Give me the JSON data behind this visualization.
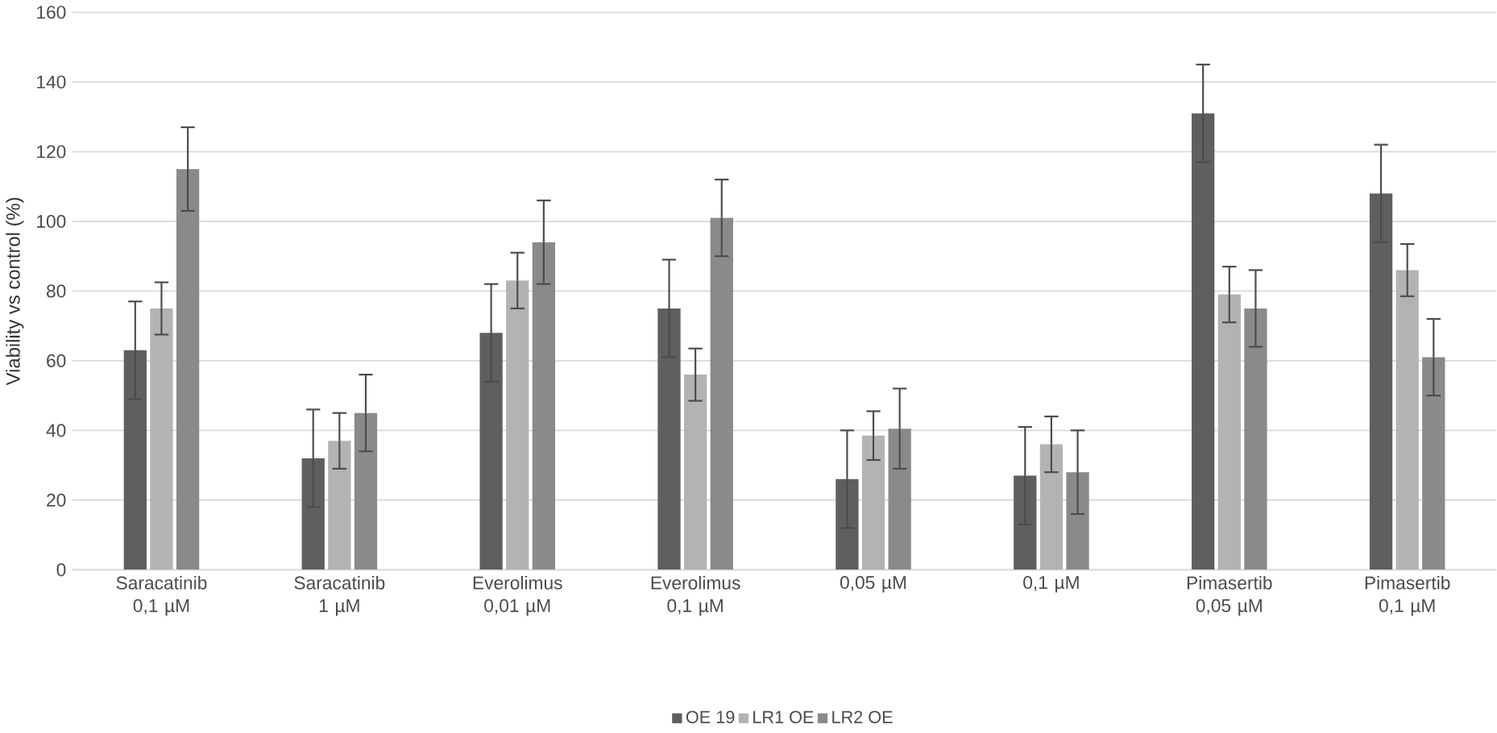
{
  "chart_data": {
    "type": "bar",
    "ylabel": "Viability vs control (%)",
    "categories": [
      "Saracatinib 0,1 µM",
      "Saracatinib 1 µM",
      "Everolimus 0,01 µM",
      "Everolimus 0,1  µM",
      "0,05 µM",
      "0,1 µM",
      "Pimasertib 0,05 µM",
      "Pimasertib 0,1 µM"
    ],
    "series": [
      {
        "name": "OE 19",
        "color": "#5f5f5f",
        "values": [
          63,
          32,
          68,
          75,
          26,
          27,
          131,
          108
        ],
        "errors": [
          14,
          14,
          14,
          14,
          14,
          14,
          14,
          14
        ]
      },
      {
        "name": "LR1 OE",
        "color": "#b3b3b3",
        "values": [
          75,
          37,
          83,
          56,
          38.5,
          36,
          79,
          86
        ],
        "errors": [
          7.5,
          8,
          8,
          7.5,
          7,
          8,
          8,
          7.5
        ]
      },
      {
        "name": "LR2 OE",
        "color": "#8a8a8a",
        "values": [
          115,
          45,
          94,
          101,
          40.5,
          28,
          75,
          61
        ],
        "errors": [
          12,
          11,
          12,
          11,
          11.5,
          12,
          11,
          11
        ]
      }
    ],
    "ylim": [
      0,
      160
    ],
    "yticks": [
      0,
      20,
      40,
      60,
      80,
      100,
      120,
      140,
      160
    ],
    "grid": "y",
    "legend": "bottom"
  }
}
